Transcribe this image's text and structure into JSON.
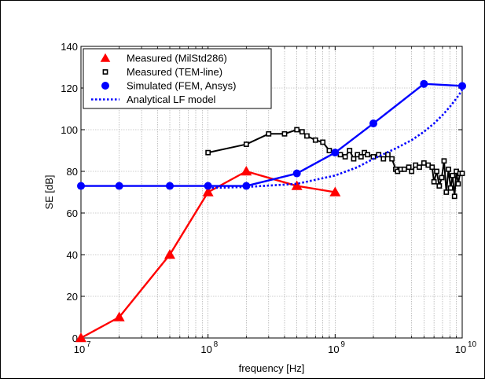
{
  "chart_data": {
    "type": "line",
    "xlabel": "frequency [Hz]",
    "ylabel": "SE [dB]",
    "x_scale": "log",
    "xlim": [
      10000000,
      10000000000
    ],
    "ylim": [
      0,
      140
    ],
    "grid": true,
    "legend_position": "top-left",
    "x_ticks": [
      {
        "value": 10000000,
        "base": "10",
        "exp": "7"
      },
      {
        "value": 100000000,
        "base": "10",
        "exp": "8"
      },
      {
        "value": 1000000000,
        "base": "10",
        "exp": "9"
      },
      {
        "value": 10000000000,
        "base": "10",
        "exp": "10"
      }
    ],
    "y_ticks": [
      "0",
      "20",
      "40",
      "60",
      "80",
      "100",
      "120",
      "140"
    ],
    "series": [
      {
        "name": "Measured (MilStd286)",
        "color": "#ff0000",
        "marker": "triangle",
        "line": "solid",
        "x": [
          10000000,
          20000000,
          50000000,
          100000000,
          200000000,
          500000000,
          1000000000
        ],
        "y": [
          0,
          10,
          40,
          70,
          80,
          73,
          70
        ]
      },
      {
        "name": "Measured (TEM-line)",
        "color": "#000000",
        "marker": "square",
        "line": "solid",
        "x": [
          100000000,
          200000000,
          300000000,
          400000000,
          500000000,
          550000000,
          600000000,
          700000000,
          800000000,
          900000000,
          1000000000,
          1100000000,
          1200000000,
          1300000000,
          1400000000,
          1500000000,
          1600000000,
          1700000000,
          1800000000,
          2000000000,
          2200000000,
          2400000000,
          2600000000,
          2800000000,
          3000000000,
          3100000000,
          3300000000,
          3500000000,
          3800000000,
          4000000000,
          4300000000,
          4600000000,
          5000000000,
          5400000000,
          5800000000,
          6000000000,
          6300000000,
          6600000000,
          6900000000,
          7200000000,
          7500000000,
          7800000000,
          8100000000,
          8400000000,
          8700000000,
          9000000000,
          9300000000,
          9600000000,
          10000000000
        ],
        "y": [
          89,
          93,
          98,
          98,
          100,
          99,
          97,
          95,
          94,
          90,
          89,
          88,
          87,
          90,
          86,
          88,
          87,
          89,
          88,
          87,
          88,
          86,
          88,
          86,
          81,
          80,
          81,
          81,
          82,
          80,
          83,
          82,
          84,
          83,
          82,
          75,
          80,
          73,
          77,
          85,
          70,
          81,
          72,
          78,
          68,
          80,
          74,
          79,
          79
        ]
      },
      {
        "name": "Simulated (FEM, Ansys)",
        "color": "#0000ff",
        "marker": "circle",
        "line": "solid",
        "x": [
          10000000,
          20000000,
          50000000,
          100000000,
          200000000,
          500000000,
          1000000000,
          2000000000,
          5000000000,
          10000000000
        ],
        "y": [
          73,
          73,
          73,
          73,
          73,
          79,
          89,
          103,
          122,
          121
        ]
      },
      {
        "name": "Analytical LF model",
        "color": "#0000ff",
        "marker": "none",
        "line": "dotted",
        "x": [
          100000000,
          200000000,
          500000000,
          1000000000,
          1500000000,
          2000000000,
          3000000000,
          4000000000,
          5000000000,
          6000000000,
          7000000000,
          8000000000,
          9000000000,
          10000000000
        ],
        "y": [
          72,
          72.5,
          74,
          78,
          82,
          86,
          91,
          95,
          99,
          103,
          107,
          111,
          115,
          119
        ]
      }
    ]
  }
}
